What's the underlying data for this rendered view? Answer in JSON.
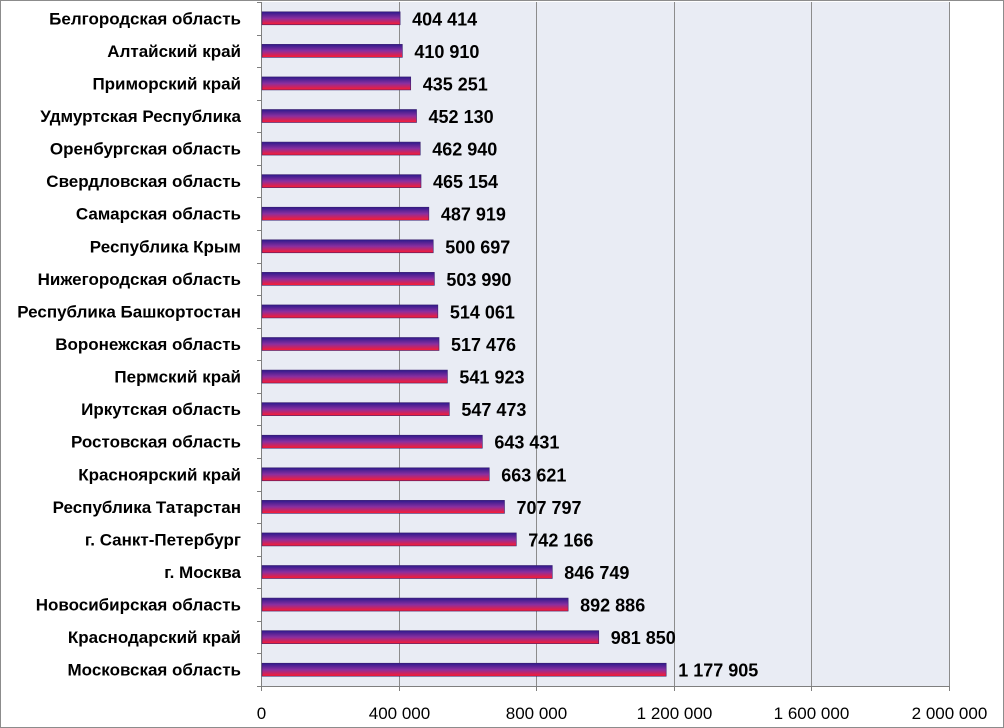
{
  "chart_data": {
    "type": "bar",
    "orientation": "horizontal",
    "categories": [
      "Белгородская область",
      "Алтайский край",
      "Приморский край",
      "Удмуртская Республика",
      "Оренбургская область",
      "Свердловская область",
      "Самарская область",
      "Республика Крым",
      "Нижегородская область",
      "Республика Башкортостан",
      "Воронежская область",
      "Пермский край",
      "Иркутская область",
      "Ростовская область",
      "Красноярский край",
      "Республика Татарстан",
      "г. Санкт-Петербург",
      "г. Москва",
      "Новосибирская область",
      "Краснодарский край",
      "Московская область"
    ],
    "values": [
      404414,
      410910,
      435251,
      452130,
      462940,
      465154,
      487919,
      500697,
      503990,
      514061,
      517476,
      541923,
      547473,
      643431,
      663621,
      707797,
      742166,
      846749,
      892886,
      981850,
      1177905
    ],
    "value_labels": [
      "404 414",
      "410 910",
      "435 251",
      "452 130",
      "462 940",
      "465 154",
      "487 919",
      "500 697",
      "503 990",
      "514 061",
      "517 476",
      "541 923",
      "547 473",
      "643 431",
      "663 621",
      "707 797",
      "742 166",
      "846 749",
      "892 886",
      "981 850",
      "1 177 905"
    ],
    "title": "",
    "xlabel": "",
    "ylabel": "",
    "xlim": [
      0,
      2000000
    ],
    "x_ticks": [
      0,
      400000,
      800000,
      1200000,
      1600000,
      2000000
    ],
    "x_tick_labels": [
      "0",
      "400 000",
      "800 000",
      "1 200 000",
      "1 600 000",
      "2 000 000"
    ],
    "grid": true,
    "legend": "none",
    "colors": {
      "bar_top": "#2d1a8c",
      "bar_mid": "#8a2fa0",
      "bar_bottom": "#ff1a2e",
      "plot_background": "#e9ecf4",
      "gridline": "#8c8c8c",
      "outer_border": "#8c8c8c"
    }
  }
}
